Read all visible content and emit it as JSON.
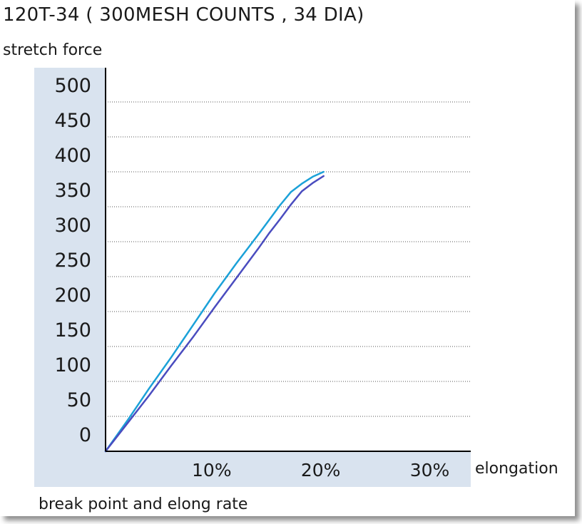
{
  "chart_data": {
    "type": "line",
    "title": "120T-34 ( 300MESH COUNTS , 34 DIA)",
    "ylabel": "stretch force",
    "xlabel": "elongation",
    "caption": "break point and elong rate",
    "ylim": [
      0,
      500
    ],
    "xlim": [
      0,
      0.335
    ],
    "yticks": [
      "0",
      "50",
      "100",
      "150",
      "200",
      "250",
      "300",
      "350",
      "400",
      "450",
      "500"
    ],
    "xticks": [
      {
        "value": 0.1,
        "label": "10%"
      },
      {
        "value": 0.2,
        "label": "20%"
      },
      {
        "value": 0.3,
        "label": "30%"
      }
    ],
    "grid": "horizontal dotted",
    "series": [
      {
        "color": "#1ba1d8",
        "x": [
          0,
          0.02,
          0.04,
          0.06,
          0.08,
          0.1,
          0.12,
          0.14,
          0.15,
          0.16,
          0.17,
          0.18,
          0.19,
          0.2
        ],
        "y": [
          0,
          44,
          90,
          134,
          180,
          226,
          269,
          310,
          331,
          352,
          371,
          383,
          393,
          400
        ]
      },
      {
        "color": "#4a4cbf",
        "x": [
          0,
          0.02,
          0.04,
          0.06,
          0.08,
          0.1,
          0.12,
          0.14,
          0.15,
          0.16,
          0.17,
          0.18,
          0.19,
          0.2
        ],
        "y": [
          0,
          40,
          80,
          122,
          163,
          206,
          248,
          290,
          312,
          332,
          353,
          372,
          384,
          394
        ]
      }
    ]
  }
}
